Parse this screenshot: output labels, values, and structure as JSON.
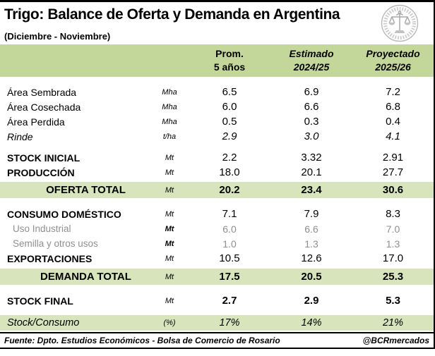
{
  "page": {
    "title": "Trigo: Balance de Oferta y Demanda en Argentina",
    "subtitle": "(Diciembre - Noviembre)",
    "logo": "bcr-seal"
  },
  "table": {
    "columns": [
      {
        "line1": "Prom.",
        "line2": "5 años",
        "emphasis": false
      },
      {
        "line1": "Estimado",
        "line2": "2024/25",
        "emphasis": true
      },
      {
        "line1": "Proyectado",
        "line2": "2025/26",
        "emphasis": true
      }
    ],
    "rows": [
      {
        "label": "Área Sembrada",
        "unit": "Mha",
        "values": [
          "6.5",
          "6.9",
          "7.2"
        ],
        "kind": "detail",
        "gap_before": 0
      },
      {
        "label": "Área Cosechada",
        "unit": "Mha",
        "values": [
          "6.0",
          "6.6",
          "6.8"
        ],
        "kind": "detail",
        "gap_before": 0
      },
      {
        "label": "Área Perdida",
        "unit": "Mha",
        "values": [
          "0.5",
          "0.3",
          "0.4"
        ],
        "kind": "detail",
        "gap_before": 0
      },
      {
        "label": "Rinde",
        "unit": "t/ha",
        "values": [
          "2.9",
          "3.0",
          "4.1"
        ],
        "kind": "detail-italic",
        "gap_before": 0
      },
      {
        "label": "STOCK INICIAL",
        "unit": "Mt",
        "values": [
          "2.2",
          "3.32",
          "2.91"
        ],
        "kind": "section",
        "gap_before": 9
      },
      {
        "label": "PRODUCCIÓN",
        "unit": "Mt",
        "values": [
          "18.0",
          "20.1",
          "27.7"
        ],
        "kind": "section",
        "gap_before": 0
      },
      {
        "label": "OFERTA TOTAL",
        "unit": "Mt",
        "values": [
          "20.2",
          "23.4",
          "30.6"
        ],
        "kind": "total",
        "gap_before": 3
      },
      {
        "label": "CONSUMO DOMÉSTICO",
        "unit": "Mt",
        "values": [
          "7.1",
          "7.9",
          "8.3"
        ],
        "kind": "section",
        "gap_before": 12
      },
      {
        "label": "Uso Industrial",
        "unit": "Mt",
        "values": [
          "6.0",
          "6.6",
          "7.0"
        ],
        "kind": "sub",
        "gap_before": 0
      },
      {
        "label": "Semilla y otros usos",
        "unit": "Mt",
        "values": [
          "1.0",
          "1.3",
          "1.3"
        ],
        "kind": "sub",
        "gap_before": 0
      },
      {
        "label": "EXPORTACIONES",
        "unit": "Mt",
        "values": [
          "10.5",
          "12.6",
          "17.0"
        ],
        "kind": "section",
        "gap_before": 0
      },
      {
        "label": "DEMANDA TOTAL",
        "unit": "Mt",
        "values": [
          "17.5",
          "20.5",
          "25.3"
        ],
        "kind": "total",
        "gap_before": 4
      },
      {
        "label": "STOCK FINAL",
        "unit": "Mt",
        "values": [
          "2.7",
          "2.9",
          "5.3"
        ],
        "kind": "final",
        "gap_before": 12
      },
      {
        "label": "Stock/Consumo",
        "unit": "(%)",
        "values": [
          "17%",
          "14%",
          "21%"
        ],
        "kind": "ratio",
        "gap_before": 10
      }
    ]
  },
  "footer": {
    "source": "Fuente: Dpto. Estudios Económicos - Bolsa de Comercio de Rosario",
    "handle": "@BCRmercados"
  },
  "colors": {
    "header_green": "#c4d79b",
    "band_green": "#d8e4bc",
    "sub_gray": "#8f8f8f",
    "frame_black": "#000000",
    "logo_gray": "#b5b5b5"
  }
}
